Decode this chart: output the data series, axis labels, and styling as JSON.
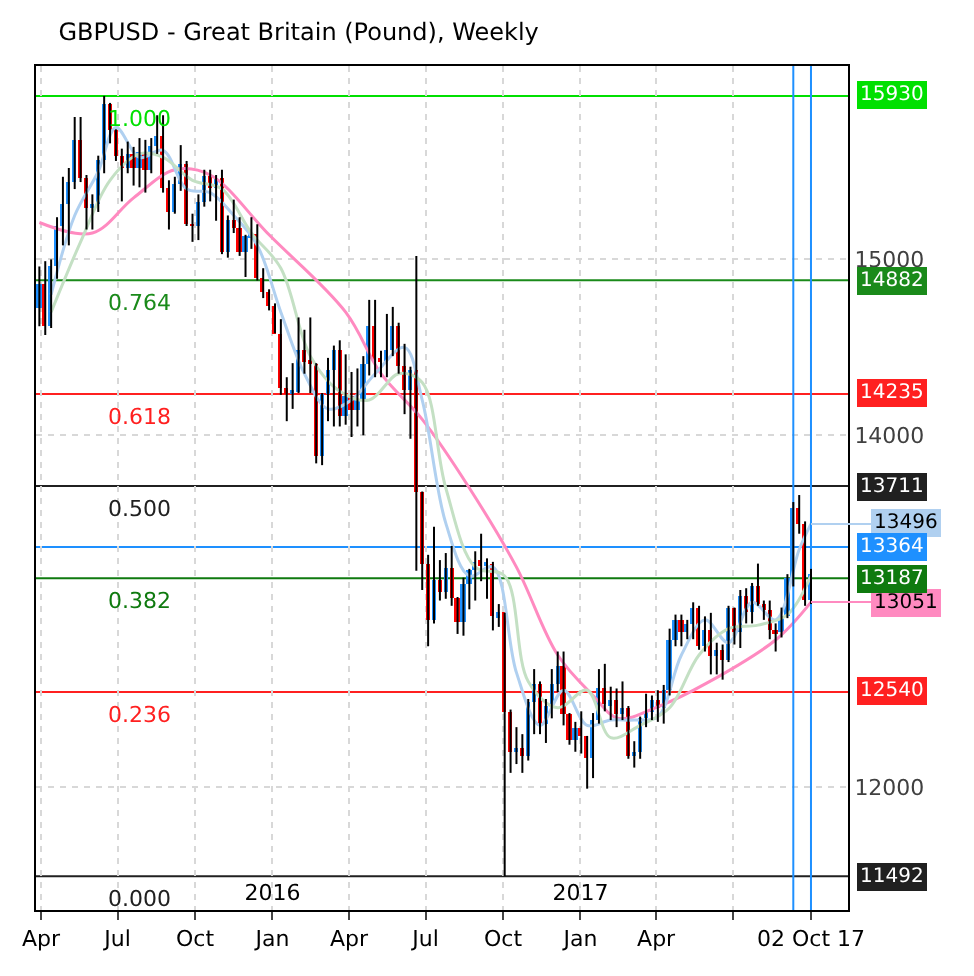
{
  "chart_data": {
    "type": "candlestick",
    "title": "GBPUSD - Great Britain (Pound), Weekly",
    "colors": [
      "#1e90ff",
      "#ff0000",
      "#1e90ff",
      "#1e90ff",
      "#1e90ff",
      "#1e90ff",
      "#1e90ff",
      "#ff0000",
      "#ff0000",
      "#1e90ff",
      "#1e90ff",
      "#1e90ff",
      "#ff0000",
      "#ff0000",
      "#ff0000",
      "#1e90ff",
      "#ff0000",
      "#1e90ff",
      "#ff0000",
      "#1e90ff",
      "#1e90ff",
      "#ff0000",
      "#ff0000",
      "#1e90ff",
      "#1e90ff",
      "#ff0000",
      "#ff0000",
      "#1e90ff",
      "#1e90ff",
      "#ff0000",
      "#1e90ff",
      "#ff0000",
      "#1e90ff",
      "#ff0000",
      "#ff0000",
      "#1e90ff",
      "#1e90ff",
      "#ff0000",
      "#ff0000",
      "#ff0000",
      "#ff0000",
      "#ff0000",
      "#ff0000",
      "#1e90ff",
      "#1e90ff",
      "#ff0000",
      "#ff0000",
      "#ff0000",
      "#1e90ff",
      "#1e90ff",
      "#1e90ff",
      "#ff0000",
      "#1e90ff",
      "#ff0000",
      "#1e90ff",
      "#1e90ff",
      "#1e90ff",
      "#ff0000",
      "#ff0000",
      "#1e90ff",
      "#1e90ff",
      "#ff0000",
      "#ff0000",
      "#1e90ff",
      "#ff0000",
      "#ff0000",
      "#ff0000",
      "#1e90ff",
      "#ff0000",
      "#1e90ff",
      "#ff0000",
      "#ff0000",
      "#1e90ff",
      "#1e90ff",
      "#1e90ff",
      "#ff0000",
      "#1e90ff",
      "#ff0000",
      "#1e90ff",
      "#ff0000",
      "#ff0000",
      "#1e90ff",
      "#ff0000",
      "#1e90ff",
      "#1e90ff",
      "#ff0000",
      "#1e90ff",
      "#1e90ff",
      "#1e90ff",
      "#ff0000",
      "#ff0000",
      "#1e90ff",
      "#ff0000",
      "#ff0000",
      "#1e90ff",
      "#1e90ff",
      "#ff0000",
      "#1e90ff",
      "#ff0000",
      "#1e90ff",
      "#ff0000",
      "#1e90ff",
      "#1e90ff",
      "#1e90ff",
      "#1e90ff",
      "#ff0000",
      "#1e90ff",
      "#1e90ff",
      "#1e90ff",
      "#ff0000",
      "#1e90ff",
      "#1e90ff",
      "#ff0000",
      "#1e90ff",
      "#ff0000",
      "#1e90ff",
      "#ff0000",
      "#1e90ff",
      "#ff0000",
      "#1e90ff",
      "#ff0000",
      "#1e90ff",
      "#ff0000",
      "#ff0000",
      "#ff0000",
      "#ff0000",
      "#1e90ff",
      "#1e90ff",
      "#1e90ff",
      "#ff0000",
      "#ff0000",
      "#1e90ff"
    ],
    "x": [
      "2015-03-30",
      "2015-04-06",
      "2015-04-13",
      "2015-04-20",
      "2015-04-27",
      "2015-05-04",
      "2015-05-11",
      "2015-05-18",
      "2015-05-25",
      "2015-06-01",
      "2015-06-08",
      "2015-06-15",
      "2015-06-22",
      "2015-06-29",
      "2015-07-06",
      "2015-07-13",
      "2015-07-20",
      "2015-07-27",
      "2015-08-03",
      "2015-08-10",
      "2015-08-17",
      "2015-08-24",
      "2015-08-31",
      "2015-09-07",
      "2015-09-14",
      "2015-09-21",
      "2015-09-28",
      "2015-10-05",
      "2015-10-12",
      "2015-10-19",
      "2015-10-26",
      "2015-11-02",
      "2015-11-09",
      "2015-11-16",
      "2015-11-23",
      "2015-11-30",
      "2015-12-07",
      "2015-12-14",
      "2015-12-21",
      "2015-12-28",
      "2016-01-04",
      "2016-01-11",
      "2016-01-18",
      "2016-01-25",
      "2016-02-01",
      "2016-02-08",
      "2016-02-15",
      "2016-02-22",
      "2016-02-29",
      "2016-03-07",
      "2016-03-14",
      "2016-03-21",
      "2016-03-28",
      "2016-04-04",
      "2016-04-11",
      "2016-04-18",
      "2016-04-25",
      "2016-05-02",
      "2016-05-09",
      "2016-05-16",
      "2016-05-23",
      "2016-05-30",
      "2016-06-06",
      "2016-06-13",
      "2016-06-20",
      "2016-06-27",
      "2016-07-04",
      "2016-07-11",
      "2016-07-18",
      "2016-07-25",
      "2016-08-01",
      "2016-08-08",
      "2016-08-15",
      "2016-08-22",
      "2016-08-29",
      "2016-09-05",
      "2016-09-12",
      "2016-09-19",
      "2016-09-26",
      "2016-10-03",
      "2016-10-10",
      "2016-10-17",
      "2016-10-24",
      "2016-10-31",
      "2016-11-07",
      "2016-11-14",
      "2016-11-21",
      "2016-11-28",
      "2016-12-05",
      "2016-12-12",
      "2016-12-19",
      "2016-12-26",
      "2017-01-02",
      "2017-01-09",
      "2017-01-16",
      "2017-01-23",
      "2017-01-30",
      "2017-02-06",
      "2017-02-13",
      "2017-02-20",
      "2017-02-27",
      "2017-03-06",
      "2017-03-13",
      "2017-03-20",
      "2017-03-27",
      "2017-04-03",
      "2017-04-10",
      "2017-04-17",
      "2017-04-24",
      "2017-05-01",
      "2017-05-08",
      "2017-05-15",
      "2017-05-22",
      "2017-05-29",
      "2017-06-05",
      "2017-06-12",
      "2017-06-19",
      "2017-06-26",
      "2017-07-03",
      "2017-07-10",
      "2017-07-17",
      "2017-07-24",
      "2017-07-31",
      "2017-08-07",
      "2017-08-14",
      "2017-08-21",
      "2017-08-28",
      "2017-09-04",
      "2017-09-11",
      "2017-09-18",
      "2017-09-25",
      "2017-10-02"
    ],
    "ohlc": [
      [
        14720,
        14960,
        14620,
        14860
      ],
      [
        14860,
        14990,
        14570,
        14620
      ],
      [
        14620,
        15000,
        14610,
        14960
      ],
      [
        14960,
        15240,
        14890,
        15190
      ],
      [
        15190,
        15470,
        15080,
        15310
      ],
      [
        15310,
        15520,
        15080,
        15440
      ],
      [
        15440,
        15810,
        15400,
        15680
      ],
      [
        15680,
        15810,
        15440,
        15460
      ],
      [
        15460,
        15480,
        15170,
        15290
      ],
      [
        15290,
        15370,
        15170,
        15320
      ],
      [
        15320,
        15590,
        15270,
        15560
      ],
      [
        15560,
        15930,
        15490,
        15880
      ],
      [
        15880,
        15890,
        15660,
        15740
      ],
      [
        15740,
        15740,
        15560,
        15590
      ],
      [
        15590,
        15630,
        15330,
        15520
      ],
      [
        15520,
        15670,
        15490,
        15600
      ],
      [
        15600,
        15640,
        15420,
        15520
      ],
      [
        15520,
        15690,
        15410,
        15610
      ],
      [
        15610,
        15680,
        15380,
        15510
      ],
      [
        15510,
        15690,
        15490,
        15640
      ],
      [
        15640,
        15820,
        15600,
        15700
      ],
      [
        15700,
        15820,
        15380,
        15410
      ],
      [
        15410,
        15450,
        15170,
        15270
      ],
      [
        15270,
        15470,
        15260,
        15430
      ],
      [
        15430,
        15650,
        15390,
        15540
      ],
      [
        15540,
        15560,
        15190,
        15200
      ],
      [
        15200,
        15260,
        15100,
        15190
      ],
      [
        15190,
        15370,
        15110,
        15330
      ],
      [
        15330,
        15510,
        15300,
        15470
      ],
      [
        15470,
        15510,
        15330,
        15410
      ],
      [
        15410,
        15480,
        15220,
        15460
      ],
      [
        15460,
        15510,
        15030,
        15040
      ],
      [
        15040,
        15250,
        15010,
        15220
      ],
      [
        15220,
        15340,
        15150,
        15180
      ],
      [
        15180,
        15240,
        15020,
        15040
      ],
      [
        15040,
        15140,
        14900,
        15130
      ],
      [
        15130,
        15240,
        15060,
        15140
      ],
      [
        15140,
        15200,
        14880,
        14900
      ],
      [
        14900,
        14950,
        14780,
        14810
      ],
      [
        14810,
        14830,
        14710,
        14740
      ],
      [
        14740,
        14750,
        14580,
        14580
      ],
      [
        14580,
        14660,
        14230,
        14270
      ],
      [
        14270,
        14330,
        14080,
        14240
      ],
      [
        14240,
        14410,
        14150,
        14250
      ],
      [
        14250,
        14670,
        14240,
        14490
      ],
      [
        14490,
        14600,
        14350,
        14420
      ],
      [
        14420,
        14670,
        14240,
        14410
      ],
      [
        14410,
        14410,
        13840,
        13880
      ],
      [
        13880,
        14240,
        13830,
        14230
      ],
      [
        14230,
        14440,
        14080,
        14370
      ],
      [
        14370,
        14510,
        14050,
        14490
      ],
      [
        14490,
        14540,
        14050,
        14110
      ],
      [
        14110,
        14460,
        14060,
        14220
      ],
      [
        14220,
        14360,
        13990,
        14140
      ],
      [
        14140,
        14380,
        14050,
        14200
      ],
      [
        14200,
        14450,
        14000,
        14410
      ],
      [
        14410,
        14770,
        14340,
        14620
      ],
      [
        14620,
        14770,
        14330,
        14430
      ],
      [
        14430,
        14480,
        14330,
        14420
      ],
      [
        14420,
        14690,
        14330,
        14490
      ],
      [
        14490,
        14730,
        14450,
        14620
      ],
      [
        14620,
        14640,
        14350,
        14390
      ],
      [
        14390,
        14520,
        14120,
        14260
      ],
      [
        14260,
        14390,
        13980,
        14370
      ],
      [
        14370,
        15020,
        13230,
        13680
      ],
      [
        13680,
        13680,
        13120,
        13270
      ],
      [
        13270,
        13320,
        12800,
        12950
      ],
      [
        12950,
        13480,
        12930,
        13180
      ],
      [
        13180,
        13290,
        13060,
        13110
      ],
      [
        13110,
        13330,
        13070,
        13240
      ],
      [
        13240,
        13370,
        13030,
        13080
      ],
      [
        13080,
        13080,
        12870,
        12940
      ],
      [
        12940,
        13190,
        12860,
        13150
      ],
      [
        13150,
        13240,
        13010,
        13230
      ],
      [
        13230,
        13340,
        13060,
        13280
      ],
      [
        13280,
        13440,
        13170,
        13260
      ],
      [
        13260,
        13300,
        13070,
        13270
      ],
      [
        13270,
        13280,
        12890,
        12970
      ],
      [
        12970,
        13040,
        12910,
        12990
      ],
      [
        12990,
        12990,
        11492,
        12430
      ],
      [
        12430,
        12440,
        12080,
        12200
      ],
      [
        12200,
        12340,
        12130,
        12220
      ],
      [
        12220,
        12300,
        12080,
        12180
      ],
      [
        12180,
        12500,
        12150,
        12480
      ],
      [
        12480,
        12670,
        12300,
        12590
      ],
      [
        12590,
        12600,
        12300,
        12360
      ],
      [
        12360,
        12500,
        12250,
        12460
      ],
      [
        12460,
        12670,
        12390,
        12580
      ],
      [
        12580,
        12770,
        12540,
        12690
      ],
      [
        12690,
        12770,
        12350,
        12420
      ],
      [
        12420,
        12420,
        12240,
        12270
      ],
      [
        12270,
        12370,
        12200,
        12340
      ],
      [
        12340,
        12430,
        12190,
        12290
      ],
      [
        12290,
        12290,
        11990,
        12170
      ],
      [
        12170,
        12420,
        12050,
        12380
      ],
      [
        12380,
        12670,
        12360,
        12560
      ],
      [
        12560,
        12700,
        12430,
        12470
      ],
      [
        12470,
        12570,
        12380,
        12490
      ],
      [
        12490,
        12560,
        12340,
        12420
      ],
      [
        12420,
        12600,
        12380,
        12450
      ],
      [
        12450,
        12460,
        12160,
        12180
      ],
      [
        12180,
        12260,
        12110,
        12200
      ],
      [
        12200,
        12400,
        12160,
        12390
      ],
      [
        12390,
        12530,
        12340,
        12430
      ],
      [
        12430,
        12520,
        12380,
        12500
      ],
      [
        12500,
        12550,
        12370,
        12450
      ],
      [
        12450,
        12580,
        12360,
        12550
      ],
      [
        12550,
        12900,
        12520,
        12840
      ],
      [
        12840,
        12980,
        12800,
        12950
      ],
      [
        12950,
        12980,
        12800,
        12880
      ],
      [
        12880,
        12950,
        12840,
        12930
      ],
      [
        12930,
        13050,
        12840,
        13020
      ],
      [
        13020,
        13030,
        12780,
        12800
      ],
      [
        12800,
        12970,
        12770,
        12890
      ],
      [
        12890,
        12990,
        12640,
        12750
      ],
      [
        12750,
        12820,
        12640,
        12780
      ],
      [
        12780,
        12810,
        12610,
        12720
      ],
      [
        12720,
        13030,
        12710,
        13020
      ],
      [
        13020,
        13020,
        12810,
        12880
      ],
      [
        12880,
        13120,
        12790,
        13090
      ],
      [
        13090,
        13130,
        12930,
        13000
      ],
      [
        13000,
        13160,
        12930,
        13140
      ],
      [
        13140,
        13270,
        13030,
        13040
      ],
      [
        13040,
        13060,
        12950,
        13010
      ],
      [
        13010,
        13060,
        12840,
        12890
      ],
      [
        12890,
        12930,
        12770,
        12880
      ],
      [
        12880,
        13020,
        12850,
        12970
      ],
      [
        12970,
        13210,
        12960,
        13190
      ],
      [
        13190,
        13620,
        13140,
        13590
      ],
      [
        13590,
        13660,
        13440,
        13500
      ],
      [
        13500,
        13510,
        13030,
        13060
      ],
      [
        13060,
        13240,
        13040,
        13210
      ]
    ],
    "series": [
      {
        "type": "line",
        "color": "#ff8ac0",
        "x": [
          "2015-03-30",
          "2015-06-01",
          "2015-07-20",
          "2015-09-07",
          "2015-10-19",
          "2015-12-28",
          "2016-03-28",
          "2016-05-09",
          "2016-06-27",
          "2016-08-22",
          "2016-10-17",
          "2016-12-05",
          "2017-01-16",
          "2017-02-15",
          "2017-04-05",
          "2017-05-31",
          "2017-08-22",
          "2017-10-02"
        ],
        "values": [
          15210,
          15150,
          15350,
          15510,
          15480,
          15140,
          14700,
          14350,
          14090,
          13700,
          13250,
          12750,
          12520,
          12390,
          12460,
          12590,
          12840,
          13051
        ],
        "value_labels": [
          null,
          null,
          null,
          null,
          null,
          null,
          null,
          null,
          null,
          null,
          null,
          null,
          null,
          null,
          null,
          null,
          null,
          "13051"
        ]
      },
      {
        "type": "line",
        "color": "#b0d0f0",
        "x": [
          "2015-04-13",
          "2015-05-11",
          "2015-06-08",
          "2015-06-29",
          "2015-07-27",
          "2015-08-24",
          "2015-09-21",
          "2015-10-19",
          "2015-11-16",
          "2015-12-14",
          "2016-01-11",
          "2016-02-08",
          "2016-03-07",
          "2016-04-04",
          "2016-05-02",
          "2016-06-06",
          "2016-06-27",
          "2016-07-25",
          "2016-08-22",
          "2016-09-19",
          "2016-10-17",
          "2016-11-14",
          "2016-12-12",
          "2017-01-09",
          "2017-02-06",
          "2017-03-06",
          "2017-04-03",
          "2017-05-01",
          "2017-05-29",
          "2017-06-26",
          "2017-07-24",
          "2017-08-21",
          "2017-09-18",
          "2017-10-02"
        ],
        "values": [
          14800,
          15250,
          15500,
          15750,
          15580,
          15620,
          15400,
          15380,
          15250,
          15080,
          14700,
          14350,
          14150,
          14200,
          14350,
          14500,
          14200,
          13500,
          13200,
          13250,
          12650,
          12350,
          12550,
          12350,
          12380,
          12380,
          12400,
          12750,
          12950,
          12820,
          13050,
          12950,
          13350,
          13496
        ],
        "value_labels": [
          null,
          null,
          null,
          null,
          null,
          null,
          null,
          null,
          null,
          null,
          null,
          null,
          null,
          null,
          null,
          null,
          null,
          null,
          null,
          null,
          null,
          null,
          null,
          null,
          null,
          null,
          null,
          null,
          null,
          null,
          null,
          null,
          null,
          "13496"
        ]
      },
      {
        "type": "line",
        "color": "#c4e0c4",
        "x": [
          "2015-04-13",
          "2015-05-18",
          "2015-06-22",
          "2015-07-27",
          "2015-08-24",
          "2015-09-28",
          "2015-11-02",
          "2015-12-07",
          "2016-01-11",
          "2016-02-15",
          "2016-03-21",
          "2016-04-25",
          "2016-05-30",
          "2016-06-27",
          "2016-07-25",
          "2016-08-29",
          "2016-10-03",
          "2016-10-31",
          "2016-12-05",
          "2017-01-09",
          "2017-02-06",
          "2017-03-13",
          "2017-04-17",
          "2017-05-22",
          "2017-06-26",
          "2017-07-31",
          "2017-09-04",
          "2017-10-02"
        ],
        "values": [
          14700,
          15100,
          15450,
          15600,
          15580,
          15450,
          15400,
          15150,
          14950,
          14450,
          14250,
          14200,
          14350,
          14300,
          13700,
          13250,
          13200,
          12600,
          12450,
          12550,
          12280,
          12350,
          12450,
          12750,
          12900,
          12920,
          12980,
          13200
        ]
      }
    ],
    "ref_lines": [
      {
        "axis": "y",
        "value": 15930,
        "label": "15930",
        "color": "#00e000"
      },
      {
        "axis": "y",
        "value": 14882,
        "label": "14882",
        "color": "#1a8a1a"
      },
      {
        "axis": "y",
        "value": 14235,
        "label": "14235",
        "color": "#ff2020"
      },
      {
        "axis": "y",
        "value": 13711,
        "label": "13711",
        "color": "#202020"
      },
      {
        "axis": "y",
        "value": 13364,
        "label": "13364",
        "color": "#1e90ff"
      },
      {
        "axis": "y",
        "value": 13187,
        "label": "13187",
        "color": "#0f7a0f"
      },
      {
        "axis": "y",
        "value": 12540,
        "label": "12540",
        "color": "#ff2020"
      },
      {
        "axis": "y",
        "value": 11492,
        "label": "11492",
        "color": "#202020"
      },
      {
        "axis": "x",
        "value": "2017-09-11",
        "color": "#1e90ff"
      },
      {
        "axis": "x",
        "value": "2017-10-02",
        "color": "#1e90ff"
      }
    ],
    "xlim": [
      "2015-03-26",
      "2017-11-15"
    ],
    "xticks": [
      {
        "value": "2015-04-01",
        "label": "Apr"
      },
      {
        "value": "2015-07-01",
        "label": "Jul"
      },
      {
        "value": "2015-10-01",
        "label": "Oct"
      },
      {
        "value": "2016-01-01",
        "label": "Jan"
      },
      {
        "value": "2016-04-01",
        "label": "Apr"
      },
      {
        "value": "2016-07-01",
        "label": "Jul"
      },
      {
        "value": "2016-10-01",
        "label": "Oct"
      },
      {
        "value": "2017-01-01",
        "label": "Jan"
      },
      {
        "value": "2017-04-01",
        "label": "Apr"
      },
      {
        "value": "2017-07-01",
        "label": null
      },
      {
        "value": "2017-10-02",
        "label": "02 Oct 17"
      }
    ],
    "x2lim": [
      "2015-03-26",
      "2017-11-15"
    ],
    "x2ticks": [
      {
        "value": "2016-01-01",
        "label": "2016"
      },
      {
        "value": "2017-01-01",
        "label": "2017"
      }
    ],
    "ylim": [
      11300,
      16100
    ],
    "yticks": [
      12000,
      14000,
      15000
    ],
    "annotations": [
      {
        "text": "1.000",
        "x": "2015-06-15",
        "y": 15930
      },
      {
        "text": "0.764",
        "x": "2015-06-15",
        "y": 14882
      },
      {
        "text": "0.618",
        "x": "2015-06-15",
        "y": 14235
      },
      {
        "text": "0.500",
        "x": "2015-06-15",
        "y": 13711
      },
      {
        "text": "0.382",
        "x": "2015-06-15",
        "y": 13187
      },
      {
        "text": "0.236",
        "x": "2015-06-15",
        "y": 12540
      },
      {
        "text": "0.000",
        "x": "2015-06-15",
        "y": 11492
      }
    ],
    "grid": true
  }
}
